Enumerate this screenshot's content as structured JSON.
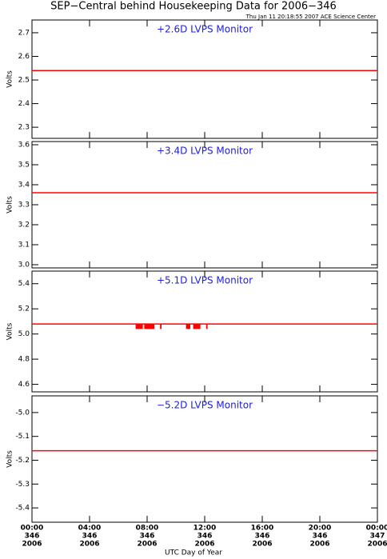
{
  "chart_data": [
    {
      "type": "line",
      "title": "SEP−Central behind Housekeeping Data for 2006−346",
      "subtitle": "Thu Jan 11 20:18:55 2007 ACE Science Center",
      "annotation": "+2.6D LVPS Monitor",
      "ylabel": "Volts",
      "x": [
        0,
        24
      ],
      "series": [
        {
          "color": "#ff0000",
          "values": [
            2.54,
            2.54
          ]
        }
      ],
      "xlim": [
        0,
        24
      ],
      "xticks": [
        0,
        4,
        8,
        12,
        16,
        20,
        24
      ],
      "ylim": [
        2.253,
        2.754
      ],
      "yticks": [
        2.3,
        2.4,
        2.5,
        2.6,
        2.7
      ]
    },
    {
      "type": "line",
      "annotation": "+3.4D LVPS Monitor",
      "ylabel": "Volts",
      "x": [
        0,
        24
      ],
      "series": [
        {
          "color": "#ff0000",
          "values": [
            3.36,
            3.36
          ]
        }
      ],
      "xlim": [
        0,
        24
      ],
      "xticks": [
        0,
        4,
        8,
        12,
        16,
        20,
        24
      ],
      "ylim": [
        2.984,
        3.616
      ],
      "yticks": [
        {
          "value": 3,
          "label": "3.0"
        },
        3.1,
        3.2,
        3.3,
        3.4,
        3.5,
        3.6
      ]
    },
    {
      "type": "line",
      "annotation": "+5.1D LVPS Monitor",
      "ylabel": "Volts",
      "x": [
        0,
        24
      ],
      "series": [
        {
          "color": "#ff0000",
          "values": [
            5.08,
            5.08
          ]
        }
      ],
      "dip_value": 5.04,
      "dips": [
        [
          7.2,
          7.7
        ],
        [
          7.8,
          8.5
        ],
        [
          8.9,
          9.0
        ],
        [
          10.7,
          11.0
        ],
        [
          11.2,
          11.7
        ],
        [
          12.1,
          12.2
        ]
      ],
      "xlim": [
        0,
        24
      ],
      "xticks": [
        0,
        4,
        8,
        12,
        16,
        20,
        24
      ],
      "ylim": [
        4.54,
        5.5
      ],
      "yticks": [
        4.6,
        4.8,
        {
          "value": 5,
          "label": "5.0"
        },
        5.2,
        5.4
      ]
    },
    {
      "type": "line",
      "annotation": "−5.2D LVPS Monitor",
      "ylabel": "Volts",
      "x": [
        0,
        24
      ],
      "series": [
        {
          "color": "#ff0000",
          "values": [
            -5.16,
            -5.16
          ]
        }
      ],
      "xlim": [
        0,
        24
      ],
      "xticks": [
        {
          "value": 0,
          "label": "00:00"
        },
        {
          "value": 4,
          "label": "04:00"
        },
        {
          "value": 8,
          "label": "08:00"
        },
        {
          "value": 12,
          "label": "12:00"
        },
        {
          "value": 16,
          "label": "16:00"
        },
        {
          "value": 20,
          "label": "20:00"
        },
        {
          "value": 24,
          "label": "00:00"
        }
      ],
      "xtick_days": [
        "346",
        "346",
        "346",
        "346",
        "346",
        "346",
        "347"
      ],
      "xtick_years": [
        "2006",
        "2006",
        "2006",
        "2006",
        "2006",
        "2006",
        "2006"
      ],
      "xlabel": "UTC Day of Year",
      "ylim": [
        -5.46,
        -4.93
      ],
      "yticks": [
        -5.4,
        -5.3,
        -5.2,
        -5.1,
        {
          "value": -5,
          "label": "-5.0"
        }
      ]
    }
  ]
}
